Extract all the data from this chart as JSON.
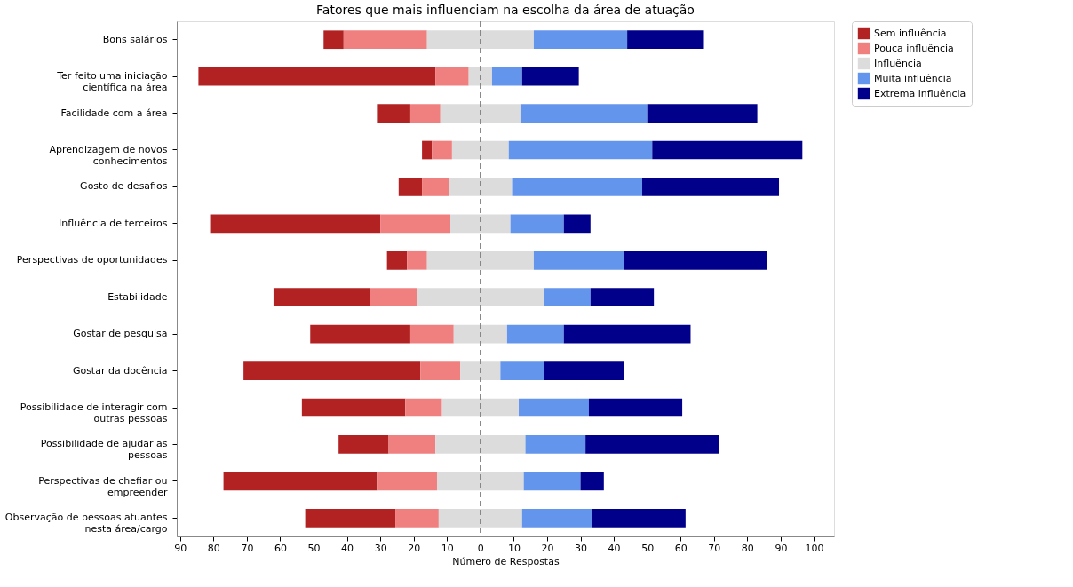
{
  "chart_data": {
    "type": "bar",
    "orientation": "horizontal",
    "title": "Fatores que mais influenciam na escolha da área de atuação",
    "xlabel": "Número de Respostas",
    "categories": [
      "Bons salários",
      "Ter feito uma iniciação\ncientífica na área",
      "Facilidade com a área",
      "Aprendizagem de novos\nconhecimentos",
      "Gosto de desafios",
      "Influência de terceiros",
      "Perspectivas de oportunidades",
      "Estabilidade",
      "Gostar de pesquisa",
      "Gostar da docência",
      "Possibilidade de interagir com\noutras pessoas",
      "Possibilidade de ajudar as\npessoas",
      "Perspectivas de chefiar ou\nempreender",
      "Observação de pessoas atuantes\nnesta área/cargo"
    ],
    "series": [
      {
        "name": "Sem influência",
        "color": "#b22222",
        "values": [
          6,
          71,
          10,
          3,
          7,
          51,
          6,
          29,
          30,
          53,
          31,
          15,
          46,
          27
        ],
        "base": [
          -47,
          -84.5,
          -31,
          -17.5,
          -24.5,
          -81,
          -28,
          -62,
          -51,
          -71,
          -53.5,
          -42.5,
          -77,
          -52.5
        ]
      },
      {
        "name": "Pouca influência",
        "color": "#f08080",
        "values": [
          25,
          10,
          9,
          6,
          8,
          21,
          6,
          14,
          13,
          12,
          11,
          14,
          18,
          13
        ],
        "base": [
          -41,
          -13.5,
          -21,
          -14.5,
          -17.5,
          -30,
          -22,
          -33,
          -21,
          -18,
          -22.5,
          -27.5,
          -31,
          -25.5
        ]
      },
      {
        "name": "Influência",
        "color": "#dcdcdc",
        "values": [
          32,
          7,
          24,
          17,
          19,
          18,
          32,
          38,
          16,
          12,
          23,
          27,
          26,
          25
        ],
        "base": [
          -16,
          -3.5,
          -12,
          -8.5,
          -9.5,
          -9,
          -16,
          -19,
          -8,
          -6,
          -11.5,
          -13.5,
          -13,
          -12.5
        ]
      },
      {
        "name": "Muita influência",
        "color": "#6495ed",
        "values": [
          28,
          9,
          38,
          43,
          39,
          16,
          27,
          14,
          17,
          13,
          21,
          18,
          17,
          21
        ],
        "base": [
          16,
          3.5,
          12,
          8.5,
          9.5,
          9,
          16,
          19,
          8,
          6,
          11.5,
          13.5,
          13,
          12.5
        ]
      },
      {
        "name": "Extrema influência",
        "color": "#00008b",
        "values": [
          23,
          17,
          33,
          45,
          41,
          8,
          43,
          19,
          38,
          24,
          28,
          40,
          7,
          28
        ],
        "base": [
          44,
          12.5,
          50,
          51.5,
          48.5,
          25,
          43,
          33,
          25,
          19,
          32.5,
          31.5,
          30,
          33.5
        ]
      }
    ],
    "xlim": [
      -91,
      106
    ],
    "xticks": [
      {
        "value": -90,
        "label": "90"
      },
      {
        "value": -80,
        "label": "80"
      },
      {
        "value": -70,
        "label": "70"
      },
      {
        "value": -60,
        "label": "60"
      },
      {
        "value": -50,
        "label": "50"
      },
      {
        "value": -40,
        "label": "40"
      },
      {
        "value": -30,
        "label": "30"
      },
      {
        "value": -20,
        "label": "20"
      },
      {
        "value": -10,
        "label": "10"
      },
      0,
      10,
      20,
      30,
      40,
      50,
      60,
      70,
      80,
      90,
      100
    ],
    "ref_lines": [
      {
        "axis": "x",
        "value": 0,
        "color": "#808080",
        "line_style": "dashed"
      }
    ],
    "grid": false,
    "legend": "top right"
  }
}
